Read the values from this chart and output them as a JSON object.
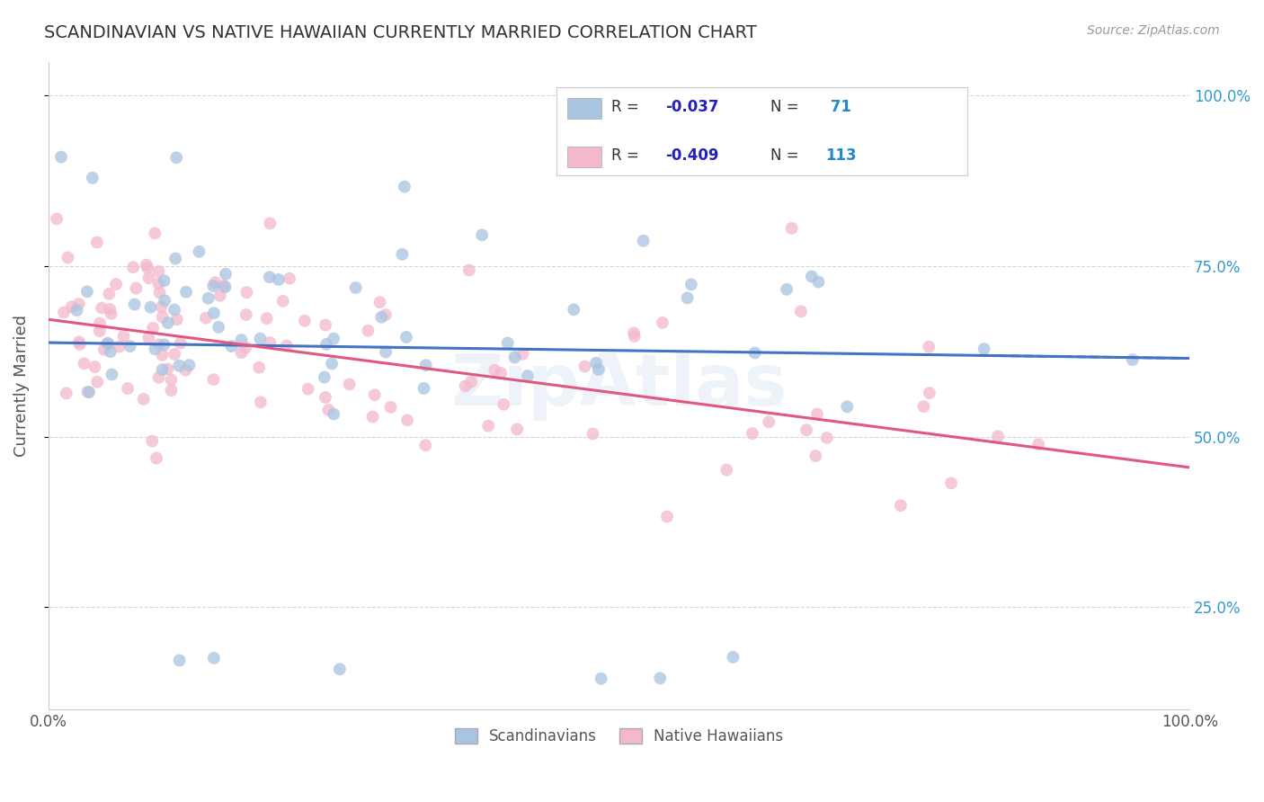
{
  "title": "SCANDINAVIAN VS NATIVE HAWAIIAN CURRENTLY MARRIED CORRELATION CHART",
  "source": "Source: ZipAtlas.com",
  "ylabel": "Currently Married",
  "watermark": "ZipAtlas",
  "color_scandinavian": "#a8c4e0",
  "color_hawaiian": "#f4b8cc",
  "color_line_scandinavian": "#4472c4",
  "color_line_hawaiian": "#e05880",
  "color_title": "#333333",
  "color_r_value": "#2222bb",
  "color_n_value": "#2288cc",
  "scand_trendline_y_start": 0.638,
  "scand_trendline_y_end": 0.615,
  "hawaiian_trendline_y_start": 0.672,
  "hawaiian_trendline_y_end": 0.455,
  "xlim": [
    0.0,
    1.0
  ],
  "ylim": [
    0.1,
    1.05
  ]
}
